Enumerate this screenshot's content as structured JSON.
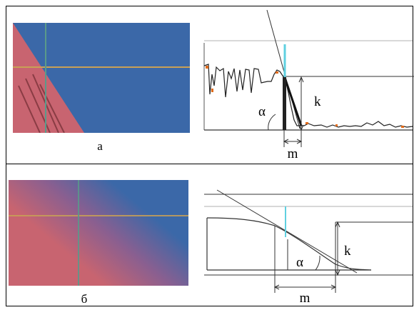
{
  "panels": [
    {
      "caption": "а",
      "profile_labels": {
        "angle": "α",
        "width": "m",
        "height": "k"
      }
    },
    {
      "caption": "б",
      "profile_labels": {
        "angle": "α",
        "width": "m",
        "height": "k"
      }
    }
  ],
  "colors": {
    "blue": "#3b68a8",
    "red": "#c86470",
    "crosshair_orange": "#c8a056",
    "crosshair_green": "#5a9a8a",
    "cyan_marker": "#5fd0e0",
    "noise_orange": "#e06a1a",
    "frame": "#333333"
  }
}
